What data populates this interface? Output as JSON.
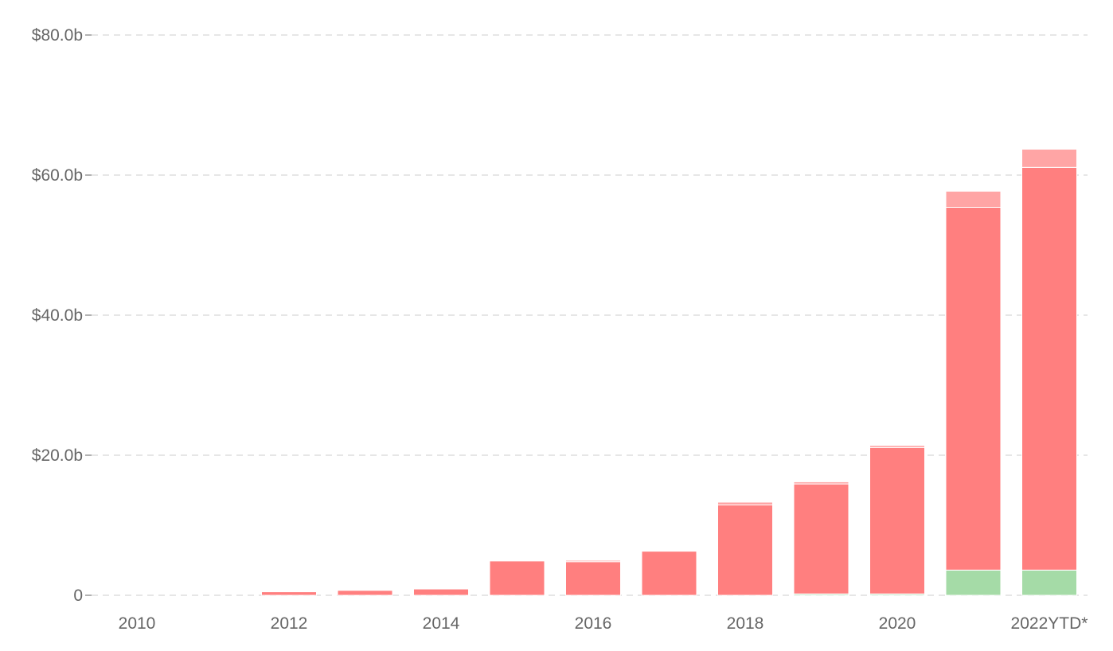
{
  "chart_data": {
    "type": "bar",
    "stacked": true,
    "categories": [
      "2010",
      "2011",
      "2012",
      "2013",
      "2014",
      "2015",
      "2016",
      "2017",
      "2018",
      "2019",
      "2020",
      "2021",
      "2022YTD*"
    ],
    "x_tick_labels": [
      "2010",
      "",
      "2012",
      "",
      "2014",
      "",
      "2016",
      "",
      "2018",
      "",
      "2020",
      "",
      "2022YTD*"
    ],
    "series": [
      {
        "color": "#a5dba7",
        "values": [
          0,
          0,
          0,
          0,
          0,
          0,
          0,
          0,
          0,
          0.2,
          0.2,
          3.6,
          3.6
        ]
      },
      {
        "color": "#ff7f7f",
        "values": [
          0,
          0,
          0.5,
          0.7,
          0.9,
          4.9,
          4.8,
          6.3,
          12.9,
          15.7,
          20.9,
          51.8,
          57.5
        ]
      },
      {
        "color": "#ffa5a5",
        "values": [
          0,
          0,
          0,
          0,
          0,
          0,
          0.2,
          0.1,
          0.4,
          0.3,
          0.3,
          2.3,
          2.6
        ]
      }
    ],
    "y_ticks": [
      {
        "value": 0,
        "label": "0"
      },
      {
        "value": 20,
        "label": "$20.0b"
      },
      {
        "value": 40,
        "label": "$40.0b"
      },
      {
        "value": 60,
        "label": "$60.0b"
      },
      {
        "value": 80,
        "label": "$80.0b"
      }
    ],
    "ylim": [
      0,
      80
    ],
    "grid": true,
    "legend": "none",
    "title": "",
    "xlabel": "",
    "ylabel": ""
  }
}
